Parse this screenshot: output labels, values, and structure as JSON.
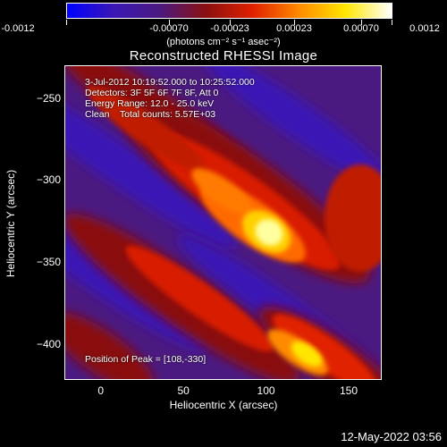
{
  "colorbar": {
    "tick_labels": [
      "-0.0012",
      "-0.00070",
      "-0.00023",
      "0.00023",
      "0.00070",
      "0.0012"
    ],
    "units_label": "(photons cm⁻² s⁻¹ asec⁻²)",
    "colors": [
      "#0000ff",
      "#3a17b5",
      "#4b1a80",
      "#8a1010",
      "#e02000",
      "#ff8a00",
      "#ffe600",
      "#ffffff"
    ]
  },
  "title": "Reconstructed RHESSI Image",
  "annotations": {
    "line1": "3-Jul-2012 10:19:52.000 to 10:25:52.000",
    "line2": "Detectors: 3F 5F 6F 7F 8F, Att 0",
    "line3": "Energy Range: 12.0 - 25.0 keV",
    "line4": "Clean    Total counts: 5.57E+03",
    "peak": "Position of Peak = [108,-330]"
  },
  "axes": {
    "xlabel": "Heliocentric X (arcsec)",
    "ylabel": "Heliocentric Y (arcsec)",
    "xticks": [
      "0",
      "50",
      "100",
      "150"
    ],
    "yticks": [
      "−250",
      "−300",
      "−350",
      "−400"
    ]
  },
  "timestamp": "12-May-2022 03:56",
  "chart_data": {
    "type": "heatmap",
    "title": "Reconstructed RHESSI Image",
    "xlabel": "Heliocentric X (arcsec)",
    "ylabel": "Heliocentric Y (arcsec)",
    "xlim": [
      -22,
      170
    ],
    "ylim": [
      -422,
      -230
    ],
    "peak": [
      108,
      -330
    ],
    "colorbar_range": [
      -0.0012,
      0.0012
    ]
  }
}
